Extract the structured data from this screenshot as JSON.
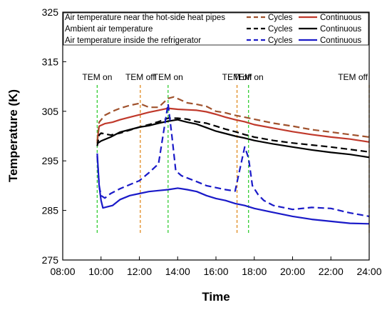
{
  "chart_data": {
    "type": "line",
    "title": "",
    "xlabel": "Time",
    "ylabel": "Temperature (K)",
    "xlim": [
      8,
      24
    ],
    "ylim": [
      275,
      325
    ],
    "xticks": [
      {
        "v": 8,
        "label": "08:00"
      },
      {
        "v": 10,
        "label": "10:00"
      },
      {
        "v": 12,
        "label": "12:00"
      },
      {
        "v": 14,
        "label": "14:00"
      },
      {
        "v": 16,
        "label": "16:00"
      },
      {
        "v": 18,
        "label": "18:00"
      },
      {
        "v": 20,
        "label": "20:00"
      },
      {
        "v": 22,
        "label": "22:00"
      },
      {
        "v": 24,
        "label": "24:00"
      }
    ],
    "yticks": [
      {
        "v": 275,
        "label": "275"
      },
      {
        "v": 285,
        "label": "285"
      },
      {
        "v": 295,
        "label": "295"
      },
      {
        "v": 305,
        "label": "305"
      },
      {
        "v": 315,
        "label": "315"
      },
      {
        "v": 325,
        "label": "325"
      }
    ],
    "grid": false,
    "legend_position": "top",
    "legend": [
      {
        "group": "Air temperature near the hot-side heat pipes",
        "cycles_label": "Cycles",
        "continuous_label": "Continuous",
        "color": "#b5400f",
        "cycles_color": "#a0522d"
      },
      {
        "group": "Ambient air temperature",
        "cycles_label": "Cycles",
        "continuous_label": "Continuous",
        "color": "#000000",
        "cycles_color": "#000000"
      },
      {
        "group": "Air temperature inside the refrigerator",
        "cycles_label": "Cycles",
        "continuous_label": "Continuous",
        "color": "#1a1ac8",
        "cycles_color": "#1a1ac8"
      }
    ],
    "annotations": [
      {
        "text": "TEM on",
        "x": 9.8,
        "y": 311.3,
        "line_color": "#33cc33"
      },
      {
        "text": "TEM off",
        "x": 12.05,
        "y": 311.3,
        "line_color": "#e08a1e"
      },
      {
        "text": "TEM on",
        "x": 13.5,
        "y": 311.3,
        "line_color": "#33cc33"
      },
      {
        "text": "TEM off",
        "x": 17.1,
        "y": 311.3,
        "line_color": "#e08a1e"
      },
      {
        "text": "TEM on",
        "x": 17.7,
        "y": 311.3,
        "line_color": "#33cc33"
      },
      {
        "text": "TEM off",
        "x": 24.0,
        "y": 311.3,
        "line_color": "#e08a1e"
      }
    ],
    "event_lines": [
      {
        "x": 9.8,
        "color": "#33cc33"
      },
      {
        "x": 12.05,
        "color": "#e08a1e"
      },
      {
        "x": 13.5,
        "color": "#33cc33"
      },
      {
        "x": 17.1,
        "color": "#e08a1e"
      },
      {
        "x": 17.7,
        "color": "#33cc33"
      },
      {
        "x": 24.0,
        "color": "#e08a1e"
      }
    ],
    "series": [
      {
        "name": "Continuous",
        "group": "Air temperature near the hot-side heat pipes",
        "style": "solid",
        "color": "#c0392b",
        "x": [
          9.8,
          9.9,
          10.2,
          10.6,
          11.0,
          11.5,
          12.0,
          12.5,
          13.0,
          13.5,
          14.0,
          14.5,
          15.0,
          15.5,
          16.0,
          16.5,
          17.0,
          17.5,
          18.0,
          19.0,
          20.0,
          21.0,
          22.0,
          23.0,
          24.0
        ],
        "y": [
          299.0,
          302.0,
          302.5,
          302.8,
          303.3,
          303.8,
          304.3,
          304.8,
          305.2,
          305.6,
          305.4,
          305.3,
          305.2,
          304.9,
          304.4,
          303.8,
          303.3,
          302.9,
          302.3,
          301.6,
          300.9,
          300.3,
          299.8,
          299.4,
          298.8
        ]
      },
      {
        "name": "Cycles",
        "group": "Air temperature near the hot-side heat pipes",
        "style": "dash",
        "color": "#a0522d",
        "x": [
          9.8,
          9.9,
          10.2,
          10.6,
          11.0,
          11.5,
          12.0,
          12.5,
          13.0,
          13.5,
          13.8,
          14.5,
          15.0,
          15.5,
          16.0,
          16.5,
          17.0,
          17.5,
          18.0,
          19.0,
          20.0,
          21.0,
          22.0,
          23.0,
          24.0
        ],
        "y": [
          298.5,
          302.8,
          304.2,
          305.0,
          305.6,
          306.2,
          306.6,
          305.8,
          305.8,
          307.6,
          307.9,
          306.7,
          306.4,
          306.0,
          305.0,
          304.7,
          304.2,
          303.8,
          303.4,
          302.6,
          302.0,
          301.3,
          300.8,
          300.3,
          299.8
        ]
      },
      {
        "name": "Continuous",
        "group": "Ambient air temperature",
        "style": "solid",
        "color": "#000000",
        "x": [
          9.8,
          10.0,
          10.5,
          11.0,
          11.5,
          12.0,
          12.5,
          13.0,
          13.5,
          14.0,
          14.5,
          15.0,
          15.5,
          16.0,
          16.5,
          17.0,
          17.5,
          18.0,
          19.0,
          20.0,
          21.0,
          22.0,
          23.0,
          24.0
        ],
        "y": [
          298.5,
          299.0,
          299.8,
          300.8,
          301.3,
          301.8,
          302.1,
          302.6,
          303.0,
          303.3,
          302.8,
          302.4,
          301.7,
          301.0,
          300.5,
          300.0,
          299.6,
          299.1,
          298.4,
          297.8,
          297.2,
          296.7,
          296.3,
          295.7
        ]
      },
      {
        "name": "Cycles",
        "group": "Ambient air temperature",
        "style": "dash",
        "color": "#000000",
        "x": [
          9.8,
          9.9,
          10.0,
          10.5,
          11.0,
          11.5,
          12.0,
          12.5,
          13.0,
          13.5,
          14.0,
          14.5,
          15.0,
          15.5,
          16.0,
          16.5,
          17.0,
          17.5,
          18.0,
          19.0,
          20.0,
          21.0,
          22.0,
          23.0,
          24.0
        ],
        "y": [
          298.0,
          300.2,
          300.6,
          300.2,
          300.6,
          301.2,
          301.8,
          302.3,
          302.9,
          303.6,
          303.6,
          303.4,
          302.9,
          302.6,
          302.0,
          301.4,
          300.9,
          300.3,
          299.8,
          299.1,
          298.6,
          298.2,
          297.8,
          297.3,
          296.8
        ]
      },
      {
        "name": "Continuous",
        "group": "Air temperature inside the refrigerator",
        "style": "solid",
        "color": "#1a1ac8",
        "x": [
          9.8,
          9.9,
          10.0,
          10.1,
          10.3,
          10.6,
          11.0,
          11.5,
          12.0,
          12.5,
          13.0,
          13.5,
          14.0,
          14.5,
          15.0,
          15.5,
          16.0,
          16.5,
          17.0,
          17.5,
          18.0,
          19.0,
          20.0,
          21.0,
          22.0,
          23.0,
          24.0
        ],
        "y": [
          296.5,
          290.0,
          287.0,
          285.5,
          285.7,
          286.0,
          287.2,
          288.0,
          288.4,
          288.8,
          289.0,
          289.2,
          289.5,
          289.2,
          288.8,
          288.0,
          287.4,
          287.0,
          286.4,
          286.0,
          285.4,
          284.6,
          283.8,
          283.2,
          282.8,
          282.4,
          282.3
        ]
      },
      {
        "name": "Cycles",
        "group": "Air temperature inside the refrigerator",
        "style": "dash",
        "color": "#1a1ac8",
        "x": [
          9.8,
          9.9,
          10.0,
          10.2,
          10.5,
          11.0,
          11.5,
          12.0,
          12.5,
          13.0,
          13.5,
          13.7,
          13.9,
          14.2,
          14.6,
          15.0,
          15.5,
          16.0,
          16.5,
          17.0,
          17.5,
          17.7,
          17.9,
          18.2,
          18.5,
          19.0,
          19.5,
          20.0,
          21.0,
          22.0,
          23.0,
          24.0
        ],
        "y": [
          296.0,
          290.0,
          288.0,
          287.5,
          288.4,
          289.4,
          290.2,
          291.0,
          292.6,
          294.4,
          306.5,
          300.0,
          293.0,
          292.0,
          291.4,
          290.8,
          290.0,
          289.6,
          289.2,
          288.9,
          297.8,
          295.6,
          290.0,
          288.2,
          287.0,
          286.0,
          285.6,
          285.2,
          285.6,
          285.4,
          284.5,
          283.8
        ]
      }
    ]
  }
}
